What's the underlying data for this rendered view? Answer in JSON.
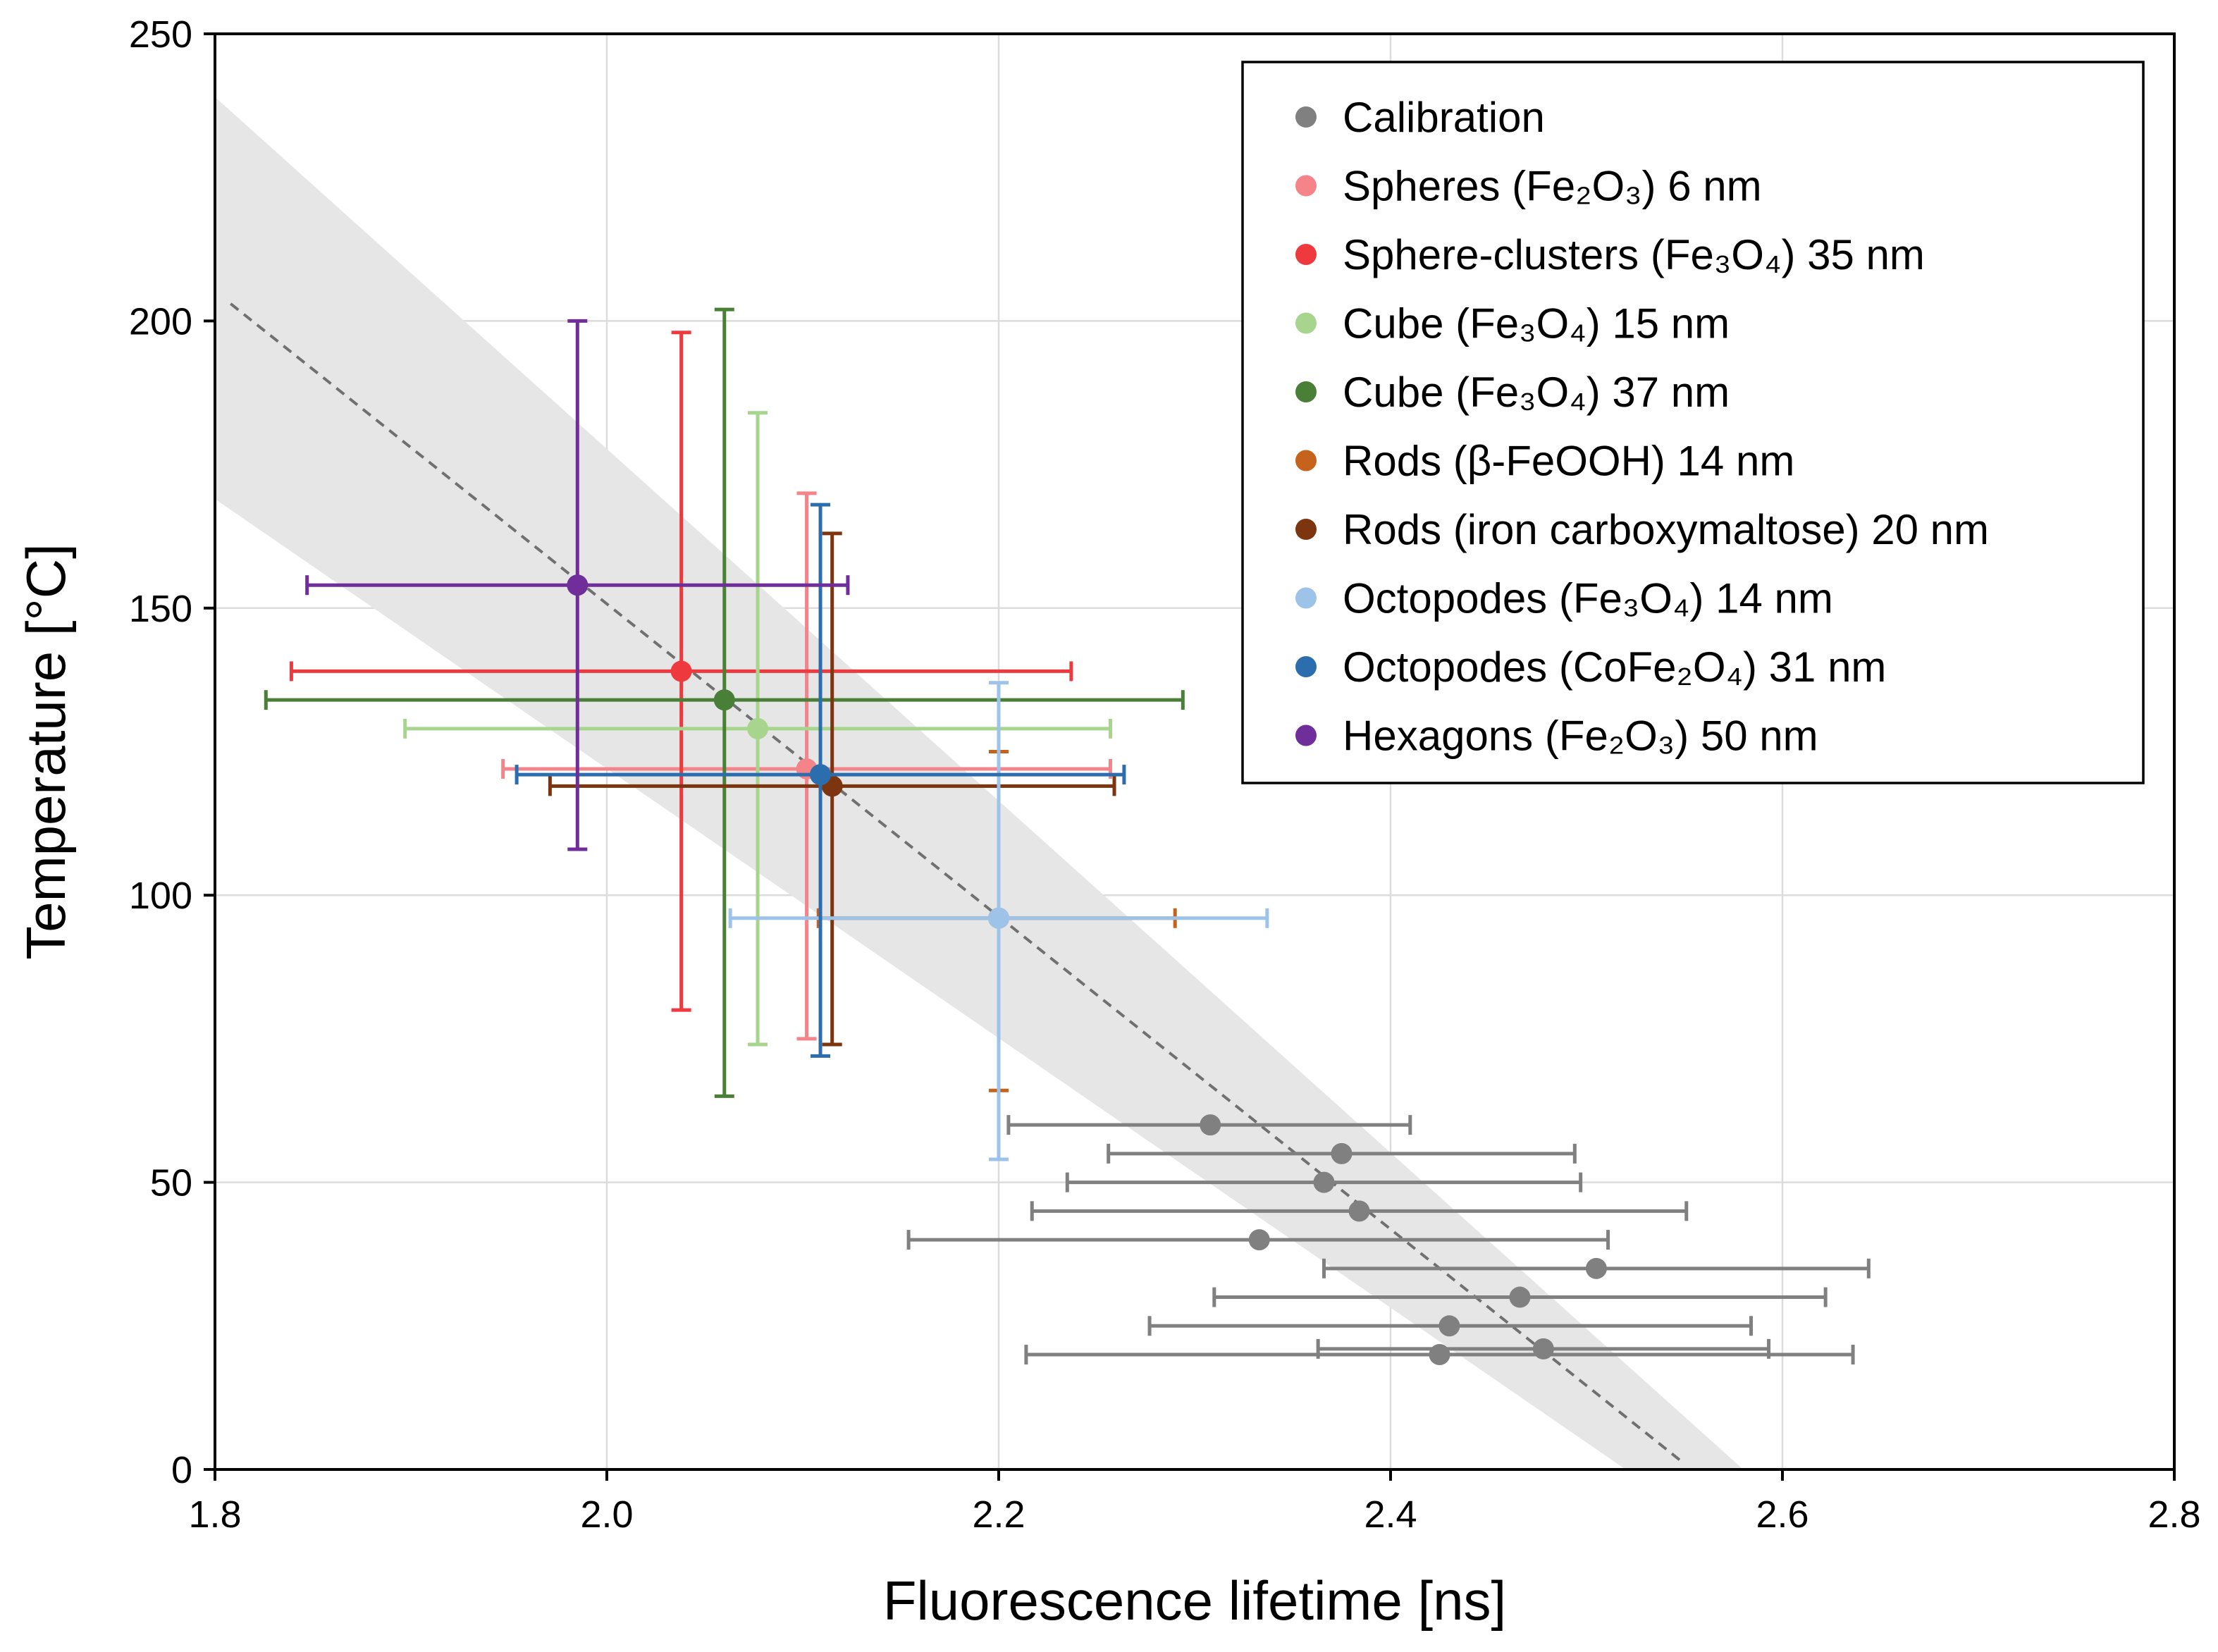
{
  "chart_data": {
    "type": "scatter",
    "xlabel": "Fluorescence lifetime [ns]",
    "ylabel": "Temperature [°C]",
    "xlim": [
      1.8,
      2.8
    ],
    "ylim": [
      0,
      250
    ],
    "x_ticks": [
      1.8,
      2.0,
      2.2,
      2.4,
      2.6,
      2.8
    ],
    "x_tick_labels": [
      "1.8",
      "2.0",
      "2.2",
      "2.4",
      "2.6",
      "2.8"
    ],
    "y_ticks": [
      0,
      50,
      100,
      150,
      200,
      250
    ],
    "y_tick_labels": [
      "0",
      "50",
      "100",
      "150",
      "200",
      "250"
    ],
    "grid": true,
    "legend_position": "top-right",
    "fit_line": {
      "style": "dashed",
      "color": "#707070",
      "points": [
        [
          1.808,
          203
        ],
        [
          2.55,
          1
        ]
      ]
    },
    "confidence_band": {
      "color": "#e6e6e6",
      "upper": [
        [
          1.8,
          239
        ],
        [
          2.58,
          0
        ]
      ],
      "lower": [
        [
          1.8,
          169
        ],
        [
          2.52,
          0
        ]
      ]
    },
    "series": [
      {
        "name": "Calibration",
        "color": "#808080",
        "points": [
          {
            "x": 2.308,
            "y": 60,
            "xerr": [
              2.205,
              2.41
            ]
          },
          {
            "x": 2.375,
            "y": 55,
            "xerr": [
              2.256,
              2.494
            ]
          },
          {
            "x": 2.366,
            "y": 50,
            "xerr": [
              2.235,
              2.497
            ]
          },
          {
            "x": 2.384,
            "y": 45,
            "xerr": [
              2.217,
              2.551
            ]
          },
          {
            "x": 2.333,
            "y": 40,
            "xerr": [
              2.154,
              2.511
            ]
          },
          {
            "x": 2.505,
            "y": 35,
            "xerr": [
              2.366,
              2.644
            ]
          },
          {
            "x": 2.466,
            "y": 30,
            "xerr": [
              2.31,
              2.622
            ]
          },
          {
            "x": 2.43,
            "y": 25,
            "xerr": [
              2.277,
              2.584
            ]
          },
          {
            "x": 2.478,
            "y": 21,
            "xerr": [
              2.363,
              2.593
            ]
          },
          {
            "x": 2.425,
            "y": 20,
            "xerr": [
              2.214,
              2.636
            ]
          }
        ]
      },
      {
        "name": "Spheres (Fe₂O₃) 6 nm",
        "color": "#f4848a",
        "points": [
          {
            "x": 2.102,
            "y": 122,
            "xerr": [
              1.947,
              2.257
            ],
            "yerr": [
              75,
              170
            ]
          }
        ]
      },
      {
        "name": "Sphere-clusters (Fe₃O₄) 35 nm",
        "color": "#ee3a3f",
        "points": [
          {
            "x": 2.038,
            "y": 139,
            "xerr": [
              1.839,
              2.237
            ],
            "yerr": [
              80,
              198
            ]
          }
        ]
      },
      {
        "name": "Cube (Fe₃O₄) 15 nm",
        "color": "#a8d58e",
        "points": [
          {
            "x": 2.077,
            "y": 129,
            "xerr": [
              1.897,
              2.257
            ],
            "yerr": [
              74,
              184
            ]
          }
        ]
      },
      {
        "name": "Cube (Fe₃O₄) 37 nm",
        "color": "#4a7f37",
        "points": [
          {
            "x": 2.06,
            "y": 134,
            "xerr": [
              1.826,
              2.294
            ],
            "yerr": [
              65,
              202
            ]
          }
        ]
      },
      {
        "name": "Rods (β-FeOOH) 14 nm",
        "color": "#c5621c",
        "points": [
          {
            "x": 2.2,
            "y": 96,
            "xerr": [
              2.108,
              2.29
            ],
            "yerr": [
              66,
              125
            ]
          }
        ]
      },
      {
        "name": "Rods (iron carboxymaltose) 20 nm",
        "color": "#7d3510",
        "points": [
          {
            "x": 2.115,
            "y": 119,
            "xerr": [
              1.971,
              2.259
            ],
            "yerr": [
              74,
              163
            ]
          }
        ]
      },
      {
        "name": "Octopodes (Fe₃O₄) 14 nm",
        "color": "#9dc3e8",
        "points": [
          {
            "x": 2.2,
            "y": 96,
            "xerr": [
              2.063,
              2.337
            ],
            "yerr": [
              54,
              137
            ]
          }
        ]
      },
      {
        "name": "Octopodes (CoFe₂O₄) 31 nm",
        "color": "#2c6ead",
        "points": [
          {
            "x": 2.109,
            "y": 121,
            "xerr": [
              1.954,
              2.264
            ],
            "yerr": [
              72,
              168
            ]
          }
        ]
      },
      {
        "name": "Hexagons (Fe₂O₃) 50 nm",
        "color": "#6f2e9a",
        "points": [
          {
            "x": 1.985,
            "y": 154,
            "xerr": [
              1.847,
              2.123
            ],
            "yerr": [
              108,
              200
            ]
          }
        ]
      }
    ]
  }
}
